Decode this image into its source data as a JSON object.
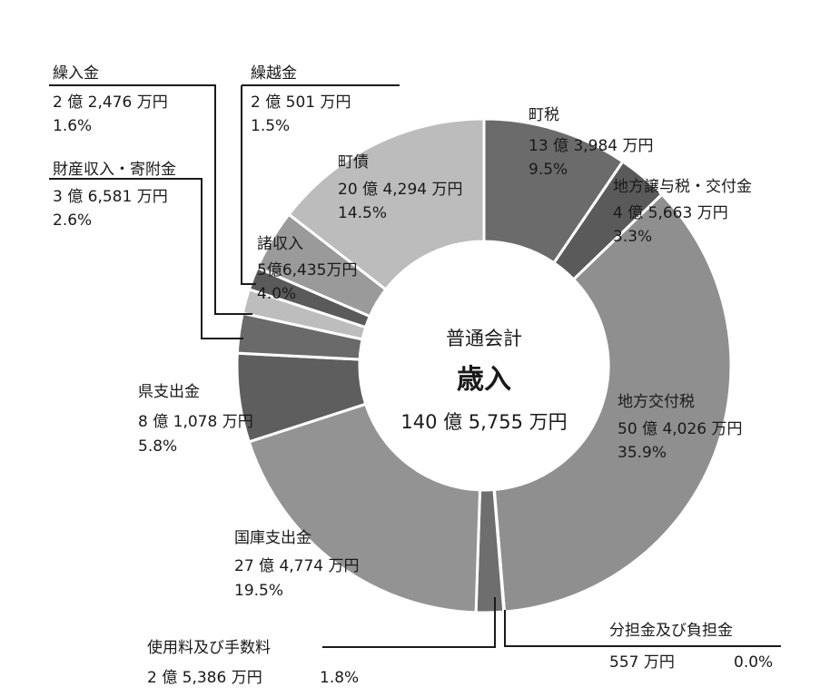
{
  "chart_data": {
    "type": "pie",
    "subtitle": "普通会計",
    "title": "歳入",
    "total": "140 億 5,755 万円",
    "slices": [
      {
        "name": "町税",
        "amount": "13 億 3,984 万円",
        "percent_label": "9.5%",
        "value": 9.5,
        "color": "#6b6b6b"
      },
      {
        "name": "地方譲与税・交付金",
        "amount": "4 億 5,663 万円",
        "percent_label": "3.3%",
        "value": 3.3,
        "color": "#5a5a5a"
      },
      {
        "name": "地方交付税",
        "amount": "50 億 4,026 万円",
        "percent_label": "35.9%",
        "value": 35.9,
        "color": "#8f8f8f"
      },
      {
        "name": "分担金及び負担金",
        "amount": "557 万円",
        "percent_label": "0.0%",
        "value": 0.04,
        "color": "#5a5a5a"
      },
      {
        "name": "使用料及び手数料",
        "amount": "2 億 5,386 万円",
        "percent_label": "1.8%",
        "value": 1.8,
        "color": "#6e6e6e"
      },
      {
        "name": "国庫支出金",
        "amount": "27 億 4,774 万円",
        "percent_label": "19.5%",
        "value": 19.5,
        "color": "#939393"
      },
      {
        "name": "県支出金",
        "amount": "8 億 1,078 万円",
        "percent_label": "5.8%",
        "value": 5.8,
        "color": "#5e5e5e"
      },
      {
        "name": "財産収入・寄附金",
        "amount": "3 億 6,581 万円",
        "percent_label": "2.6%",
        "value": 2.6,
        "color": "#6a6a6a"
      },
      {
        "name": "繰入金",
        "amount": "2 億 2,476 万円",
        "percent_label": "1.6%",
        "value": 1.6,
        "color": "#bdbdbd"
      },
      {
        "name": "繰越金",
        "amount": "2 億 501 万円",
        "percent_label": "1.5%",
        "value": 1.5,
        "color": "#5a5a5a"
      },
      {
        "name": "諸収入",
        "amount": "5億6,435万円",
        "percent_label": "4.0%",
        "value": 4.0,
        "color": "#9a9a9a"
      },
      {
        "name": "町債",
        "amount": "20 億 4,294 万円",
        "percent_label": "14.5%",
        "value": 14.5,
        "color": "#bcbcbc"
      }
    ]
  }
}
